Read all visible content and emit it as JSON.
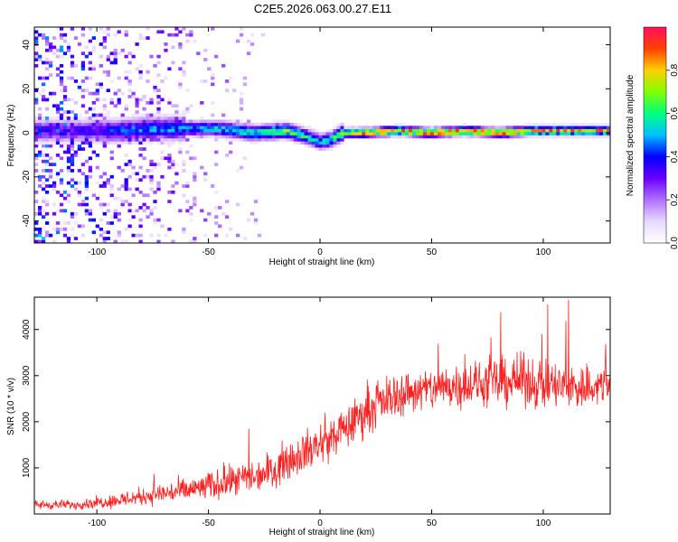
{
  "figure_title": "C2E5.2026.063.00.27.E11",
  "chart_data": [
    {
      "type": "heatmap",
      "title": "C2E5.2026.063.00.27.E11",
      "xlabel": "Height of straight line (km)",
      "ylabel": "Frequency (Hz)",
      "xlim": [
        -128,
        130
      ],
      "ylim": [
        -50,
        48
      ],
      "x_ticks": [
        -100,
        -50,
        0,
        50,
        100
      ],
      "y_ticks": [
        -40,
        -20,
        0,
        20,
        40
      ],
      "colorbar": {
        "label": "Normalized spectral amplitude",
        "range": [
          0,
          1
        ],
        "ticks": [
          0.0,
          0.2,
          0.4,
          0.6,
          0.8
        ],
        "tick_labels": [
          "0.0",
          "0.2",
          "0.4",
          "0.6",
          "0.8"
        ],
        "colormap": [
          "#ffffff",
          "#e8d8ff",
          "#b070ff",
          "#6a00ff",
          "#0000ff",
          "#00c0ff",
          "#00ff80",
          "#80ff00",
          "#ffd000",
          "#ff4000",
          "#ff1060"
        ]
      },
      "ridge": {
        "x": [
          -105,
          -90,
          -75,
          -60,
          -45,
          -30,
          -15,
          -5,
          0,
          5,
          10,
          20,
          35,
          50,
          65,
          80,
          95,
          110,
          130
        ],
        "frequency": [
          1,
          1,
          2,
          2,
          2,
          0,
          1,
          -2,
          -4,
          -3,
          0,
          0,
          1,
          0,
          1,
          0,
          1,
          1,
          1
        ],
        "peak_amplitude": [
          0.35,
          0.45,
          0.5,
          0.5,
          0.55,
          0.6,
          0.7,
          0.6,
          0.55,
          0.6,
          0.75,
          0.9,
          0.9,
          0.9,
          0.9,
          0.95,
          0.9,
          0.9,
          0.85
        ]
      },
      "noise_region_x": [
        -128,
        -25
      ]
    },
    {
      "type": "line",
      "xlabel": "Height of straight line (km)",
      "ylabel": "SNR (10 * v/v)",
      "xlim": [
        -128,
        130
      ],
      "ylim": [
        0,
        4700
      ],
      "x_ticks": [
        -100,
        -50,
        0,
        50,
        100
      ],
      "y_ticks": [
        1000,
        2000,
        3000,
        4000
      ],
      "line_color": "#ff2020",
      "series": [
        {
          "x": [
            -128,
            -110,
            -100,
            -90,
            -80,
            -70,
            -60,
            -50,
            -40,
            -30,
            -20,
            -10,
            0,
            10,
            20,
            30,
            40,
            50,
            60,
            70,
            80,
            90,
            100,
            110,
            120,
            130
          ],
          "values": [
            200,
            200,
            250,
            300,
            380,
            450,
            500,
            600,
            700,
            800,
            1000,
            1300,
            1500,
            1800,
            2200,
            2500,
            2650,
            2700,
            2800,
            2800,
            2850,
            2900,
            2800,
            2750,
            2750,
            2800
          ],
          "spread": [
            150,
            150,
            180,
            250,
            300,
            350,
            400,
            450,
            500,
            550,
            600,
            650,
            700,
            700,
            700,
            700,
            700,
            700,
            750,
            750,
            800,
            800,
            800,
            800,
            800,
            800
          ]
        }
      ]
    }
  ]
}
